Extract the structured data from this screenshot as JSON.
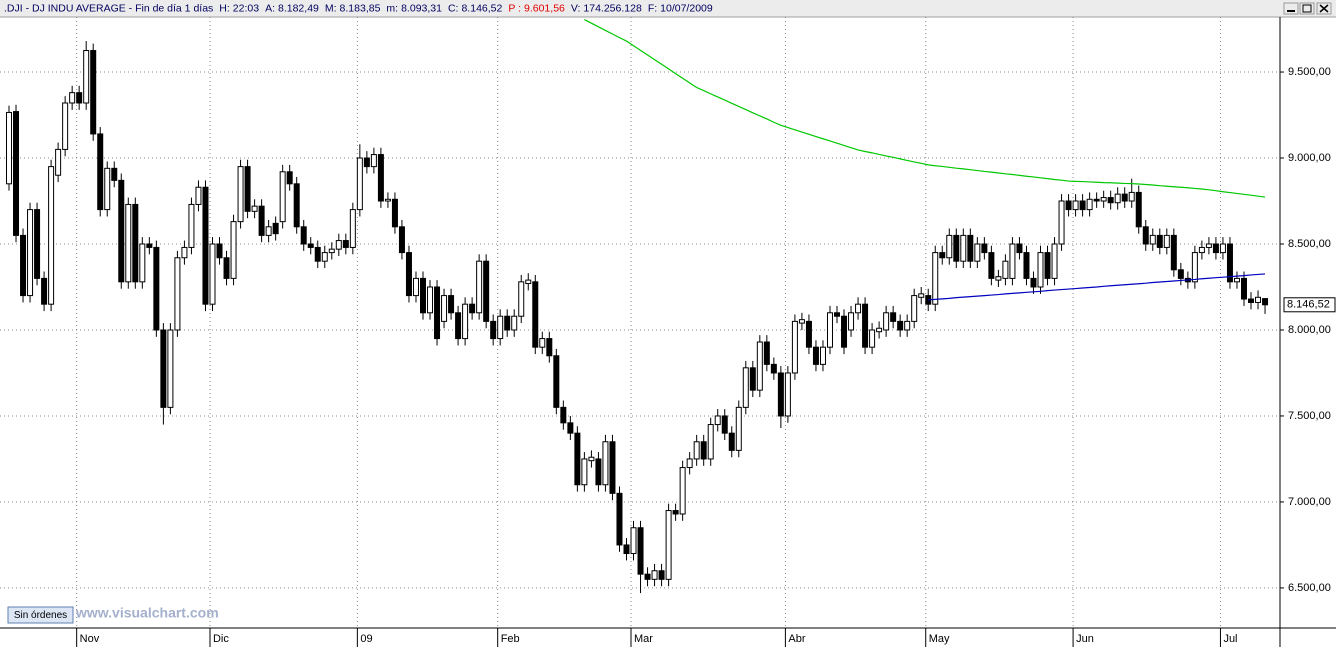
{
  "header": {
    "title": ".DJI - DJ INDU AVERAGE - Fin de día 1 días",
    "fields": [
      {
        "label": "H:",
        "value": "22:03"
      },
      {
        "label": "A:",
        "value": "8.182,49"
      },
      {
        "label": "M:",
        "value": "8.183,85"
      },
      {
        "label": "m:",
        "value": "8.093,31"
      },
      {
        "label": "C:",
        "value": "8.146,52"
      },
      {
        "label": "P :",
        "value": "9.601,56",
        "color": "#e00000"
      },
      {
        "label": "V:",
        "value": "174.256.128"
      },
      {
        "label": "F:",
        "value": "10/07/2009"
      }
    ]
  },
  "button": "Sin órdenes",
  "watermark": "www.visualchart.com",
  "chart_data": {
    "type": "candlestick",
    "grid": true,
    "up_color": "#ffffff",
    "down_color": "#000000",
    "ylim": [
      6267,
      9820
    ],
    "yticks": [
      {
        "value": 6500,
        "label": "6.500,00"
      },
      {
        "value": 7000,
        "label": "7.000,00"
      },
      {
        "value": 7500,
        "label": "7.500,00"
      },
      {
        "value": 8000,
        "label": "8.000,00"
      },
      {
        "value": 8500,
        "label": "8.500,00"
      },
      {
        "value": 9000,
        "label": "9.000,00"
      },
      {
        "value": 9500,
        "label": "9.500,00"
      }
    ],
    "last_label": {
      "value": 8146.52,
      "label": "8.146,52"
    },
    "categories": [
      null,
      null,
      null,
      null,
      null,
      null,
      null,
      null,
      null,
      null,
      "Nov",
      null,
      null,
      null,
      null,
      null,
      null,
      null,
      null,
      null,
      null,
      null,
      null,
      null,
      null,
      null,
      null,
      null,
      null,
      "Dic",
      null,
      null,
      null,
      null,
      null,
      null,
      null,
      null,
      null,
      null,
      null,
      null,
      null,
      null,
      null,
      null,
      null,
      null,
      null,
      null,
      "09",
      null,
      null,
      null,
      null,
      null,
      null,
      null,
      null,
      null,
      null,
      null,
      null,
      null,
      null,
      null,
      null,
      null,
      null,
      null,
      "Feb",
      null,
      null,
      null,
      null,
      null,
      null,
      null,
      null,
      null,
      null,
      null,
      null,
      null,
      null,
      null,
      null,
      null,
      null,
      "Mar",
      null,
      null,
      null,
      null,
      null,
      null,
      null,
      null,
      null,
      null,
      null,
      null,
      null,
      null,
      null,
      null,
      null,
      null,
      null,
      null,
      null,
      "Abr",
      null,
      null,
      null,
      null,
      null,
      null,
      null,
      null,
      null,
      null,
      null,
      null,
      null,
      null,
      null,
      null,
      null,
      null,
      null,
      "May",
      null,
      null,
      null,
      null,
      null,
      null,
      null,
      null,
      null,
      null,
      null,
      null,
      null,
      null,
      null,
      null,
      null,
      null,
      null,
      null,
      "Jun",
      null,
      null,
      null,
      null,
      null,
      null,
      null,
      null,
      null,
      null,
      null,
      null,
      null,
      null,
      null,
      null,
      null,
      null,
      null,
      null,
      "Jul",
      null,
      null,
      null,
      null,
      null,
      null
    ],
    "open": [
      8850,
      9270,
      8550,
      8200,
      8700,
      8300,
      8150,
      8900,
      9050,
      9320,
      9380,
      9320,
      9625,
      9140,
      8700,
      8940,
      8870,
      8280,
      8730,
      8280,
      8500,
      8480,
      8000,
      7550,
      8000,
      8420,
      8480,
      8730,
      8830,
      8150,
      8500,
      8420,
      8300,
      8630,
      8950,
      8690,
      8720,
      8550,
      8620,
      8630,
      8920,
      8850,
      8600,
      8500,
      8480,
      8400,
      8450,
      8470,
      8520,
      8480,
      8700,
      9000,
      8950,
      9020,
      8750,
      8760,
      8600,
      8450,
      8200,
      8300,
      8100,
      8250,
      8050,
      8200,
      8100,
      7950,
      8150,
      8100,
      8400,
      8050,
      7950,
      8080,
      8000,
      8080,
      8270,
      8280,
      7900,
      7950,
      7850,
      7550,
      7460,
      7400,
      7100,
      7240,
      7250,
      7100,
      7350,
      7050,
      6750,
      6700,
      6850,
      6580,
      6550,
      6600,
      6550,
      6950,
      6930,
      7200,
      7250,
      7350,
      7250,
      7450,
      7500,
      7400,
      7300,
      7550,
      7780,
      7650,
      7930,
      7800,
      7750,
      7500,
      7750,
      8040,
      8050,
      7900,
      7800,
      7900,
      8100,
      8080,
      8000,
      8100,
      8150,
      7900,
      7990,
      8000,
      8100,
      8050,
      8000,
      8050,
      8190,
      8200,
      8150,
      8450,
      8420,
      8550,
      8400,
      8550,
      8400,
      8500,
      8450,
      8290,
      8300,
      8300,
      8500,
      8450,
      8300,
      8250,
      8450,
      8300,
      8500,
      8750,
      8700,
      8750,
      8700,
      8760,
      8750,
      8770,
      8740,
      8790,
      8750,
      8800,
      8600,
      8500,
      8550,
      8480,
      8550,
      8350,
      8300,
      8280,
      8450,
      8480,
      8500,
      8450,
      8500,
      8280,
      8300,
      8180,
      8160,
      8182.49
    ],
    "high": [
      9305,
      9310,
      8590,
      8740,
      8740,
      8340,
      8990,
      9090,
      9360,
      9420,
      9420,
      9680,
      9665,
      9180,
      8980,
      8980,
      8910,
      8770,
      8770,
      8540,
      8540,
      8520,
      8040,
      8040,
      8460,
      8520,
      8770,
      8870,
      8870,
      8540,
      8540,
      8460,
      8670,
      8990,
      8990,
      8760,
      8760,
      8640,
      8660,
      8960,
      8960,
      8890,
      8640,
      8540,
      8520,
      8490,
      8510,
      8560,
      8560,
      8740,
      9080,
      9040,
      9060,
      9060,
      8800,
      8800,
      8640,
      8490,
      8340,
      8340,
      8290,
      8290,
      8240,
      8240,
      8140,
      8190,
      8190,
      8440,
      8440,
      8090,
      8120,
      8120,
      8120,
      8320,
      8330,
      8320,
      7990,
      7990,
      7890,
      7590,
      7500,
      7440,
      7290,
      7300,
      7290,
      7390,
      7390,
      7090,
      6790,
      6890,
      6890,
      6620,
      6640,
      6640,
      6990,
      6990,
      7240,
      7290,
      7390,
      7390,
      7490,
      7540,
      7540,
      7440,
      7590,
      7820,
      7820,
      7970,
      7970,
      7840,
      7790,
      7790,
      8090,
      8100,
      8090,
      7940,
      7940,
      8140,
      8140,
      8120,
      8140,
      8190,
      8190,
      8040,
      8050,
      8140,
      8140,
      8090,
      8090,
      8240,
      8250,
      8240,
      8490,
      8490,
      8590,
      8590,
      8590,
      8590,
      8540,
      8540,
      8490,
      8350,
      8440,
      8540,
      8540,
      8490,
      8340,
      8490,
      8490,
      8540,
      8790,
      8790,
      8790,
      8790,
      8800,
      8800,
      8810,
      8810,
      8830,
      8830,
      8880,
      8840,
      8640,
      8590,
      8590,
      8590,
      8590,
      8390,
      8340,
      8490,
      8520,
      8540,
      8540,
      8540,
      8540,
      8340,
      8340,
      8220,
      8230,
      8183.85
    ],
    "low": [
      8810,
      8510,
      8160,
      8160,
      8260,
      8110,
      8110,
      8860,
      9010,
      9280,
      9280,
      9280,
      9100,
      8660,
      8660,
      8830,
      8240,
      8240,
      8240,
      8240,
      8440,
      7960,
      7450,
      7510,
      7960,
      8380,
      8440,
      8690,
      8110,
      8110,
      8380,
      8260,
      8260,
      8590,
      8650,
      8650,
      8510,
      8510,
      8520,
      8590,
      8810,
      8560,
      8460,
      8440,
      8360,
      8360,
      8410,
      8430,
      8440,
      8440,
      8660,
      8910,
      8910,
      8710,
      8710,
      8560,
      8410,
      8160,
      8160,
      8060,
      8060,
      7910,
      8010,
      8060,
      7910,
      7910,
      8060,
      8060,
      8010,
      7910,
      7910,
      7960,
      7960,
      8040,
      8230,
      7860,
      7860,
      7810,
      7510,
      7420,
      7360,
      7060,
      7060,
      7200,
      7060,
      7060,
      7010,
      6710,
      6660,
      6660,
      6470,
      6510,
      6510,
      6510,
      6510,
      6890,
      6890,
      7160,
      7210,
      7210,
      7210,
      7410,
      7360,
      7260,
      7260,
      7510,
      7610,
      7610,
      7760,
      7710,
      7430,
      7460,
      7710,
      8000,
      7860,
      7760,
      7760,
      7860,
      8040,
      7860,
      7960,
      8060,
      7860,
      7860,
      7950,
      7960,
      8010,
      7960,
      7960,
      8010,
      8150,
      8110,
      8110,
      8380,
      8380,
      8360,
      8360,
      8360,
      8360,
      8410,
      8260,
      8250,
      8260,
      8260,
      8410,
      8260,
      8210,
      8210,
      8260,
      8260,
      8460,
      8660,
      8660,
      8660,
      8660,
      8710,
      8710,
      8700,
      8700,
      8710,
      8710,
      8560,
      8460,
      8460,
      8440,
      8440,
      8310,
      8260,
      8240,
      8240,
      8410,
      8440,
      8410,
      8410,
      8240,
      8240,
      8140,
      8120,
      8120,
      8093.31
    ],
    "close": [
      9265,
      8550,
      8200,
      8700,
      8300,
      8150,
      8950,
      9050,
      9320,
      9380,
      9320,
      9625,
      9140,
      8700,
      8940,
      8870,
      8280,
      8730,
      8280,
      8500,
      8480,
      8000,
      7550,
      8000,
      8420,
      8480,
      8730,
      8830,
      8150,
      8500,
      8420,
      8300,
      8630,
      8950,
      8690,
      8720,
      8550,
      8600,
      8560,
      8920,
      8850,
      8600,
      8500,
      8480,
      8400,
      8450,
      8470,
      8520,
      8480,
      8700,
      9000,
      8950,
      9020,
      8750,
      8760,
      8600,
      8450,
      8200,
      8300,
      8100,
      8250,
      7950,
      8200,
      8100,
      7950,
      8150,
      8100,
      8400,
      8050,
      7950,
      8080,
      8000,
      8080,
      8280,
      8290,
      7900,
      7950,
      7850,
      7550,
      7460,
      7400,
      7100,
      7250,
      7260,
      7100,
      7350,
      7050,
      6750,
      6700,
      6850,
      6580,
      6550,
      6600,
      6550,
      6950,
      6930,
      7200,
      7250,
      7350,
      7250,
      7450,
      7500,
      7400,
      7300,
      7550,
      7780,
      7650,
      7930,
      7800,
      7750,
      7500,
      7750,
      8050,
      8060,
      7900,
      7800,
      7900,
      8100,
      8080,
      7900,
      8100,
      8150,
      7900,
      8000,
      8010,
      8100,
      8050,
      8000,
      8050,
      8200,
      8210,
      8150,
      8450,
      8420,
      8550,
      8400,
      8550,
      8400,
      8500,
      8450,
      8300,
      8310,
      8400,
      8500,
      8450,
      8300,
      8250,
      8450,
      8300,
      8500,
      8750,
      8700,
      8750,
      8700,
      8760,
      8750,
      8770,
      8740,
      8790,
      8750,
      8800,
      8600,
      8500,
      8550,
      8480,
      8550,
      8350,
      8300,
      8280,
      8450,
      8480,
      8500,
      8450,
      8500,
      8280,
      8300,
      8180,
      8160,
      8190,
      8146.52
    ],
    "series": [
      {
        "color": "#00c800",
        "values": [
          null,
          null,
          null,
          null,
          null,
          null,
          null,
          null,
          null,
          null,
          null,
          null,
          null,
          null,
          null,
          null,
          null,
          null,
          null,
          null,
          null,
          null,
          null,
          null,
          null,
          null,
          null,
          null,
          null,
          null,
          null,
          null,
          null,
          null,
          null,
          null,
          null,
          null,
          null,
          null,
          null,
          null,
          null,
          null,
          null,
          null,
          null,
          null,
          null,
          null,
          null,
          null,
          null,
          null,
          null,
          null,
          null,
          null,
          null,
          null,
          null,
          null,
          null,
          null,
          null,
          null,
          null,
          null,
          null,
          null,
          null,
          null,
          null,
          null,
          null,
          null,
          null,
          null,
          null,
          null,
          null,
          null,
          9805,
          9784,
          9763,
          9742,
          9721,
          9700,
          9680,
          9653,
          9626,
          9599,
          9572,
          9545,
          9518,
          9491,
          9464,
          9437,
          9410,
          9392,
          9373,
          9355,
          9337,
          9318,
          9300,
          9282,
          9263,
          9245,
          9227,
          9208,
          9190,
          9177,
          9164,
          9151,
          9138,
          9125,
          9112,
          9099,
          9086,
          9073,
          9060,
          9047,
          9038,
          9030,
          9021,
          9012,
          9004,
          8995,
          8986,
          8977,
          8969,
          8960,
          8955,
          8951,
          8946,
          8941,
          8937,
          8932,
          8927,
          8922,
          8918,
          8913,
          8908,
          8904,
          8899,
          8894,
          8890,
          8885,
          8880,
          8875,
          8871,
          8866,
          8864,
          8863,
          8861,
          8859,
          8857,
          8856,
          8854,
          8852,
          8851,
          8849,
          8846,
          8843,
          8839,
          8836,
          8833,
          8830,
          8827,
          8823,
          8820,
          8815,
          8810,
          8804,
          8799,
          8794,
          8789,
          8784,
          8778,
          8773
        ]
      },
      {
        "color": "#0000c0",
        "values": [
          null,
          null,
          null,
          null,
          null,
          null,
          null,
          null,
          null,
          null,
          null,
          null,
          null,
          null,
          null,
          null,
          null,
          null,
          null,
          null,
          null,
          null,
          null,
          null,
          null,
          null,
          null,
          null,
          null,
          null,
          null,
          null,
          null,
          null,
          null,
          null,
          null,
          null,
          null,
          null,
          null,
          null,
          null,
          null,
          null,
          null,
          null,
          null,
          null,
          null,
          null,
          null,
          null,
          null,
          null,
          null,
          null,
          null,
          null,
          null,
          null,
          null,
          null,
          null,
          null,
          null,
          null,
          null,
          null,
          null,
          null,
          null,
          null,
          null,
          null,
          null,
          null,
          null,
          null,
          null,
          null,
          null,
          null,
          null,
          null,
          null,
          null,
          null,
          null,
          null,
          null,
          null,
          null,
          null,
          null,
          null,
          null,
          null,
          null,
          null,
          null,
          null,
          null,
          null,
          null,
          null,
          null,
          null,
          null,
          null,
          null,
          null,
          null,
          null,
          null,
          null,
          null,
          null,
          null,
          null,
          null,
          null,
          null,
          null,
          null,
          null,
          null,
          null,
          null,
          null,
          null,
          8175,
          8178,
          8181,
          8184,
          8188,
          8191,
          8194,
          8197,
          8200,
          8203,
          8206,
          8210,
          8213,
          8216,
          8219,
          8222,
          8225,
          8229,
          8232,
          8235,
          8238,
          8241,
          8244,
          8247,
          8250,
          8254,
          8257,
          8260,
          8263,
          8266,
          8269,
          8272,
          8276,
          8279,
          8282,
          8285,
          8288,
          8291,
          8294,
          8298,
          8301,
          8304,
          8307,
          8310,
          8313,
          8316,
          8320,
          8323,
          8326
        ]
      }
    ]
  }
}
